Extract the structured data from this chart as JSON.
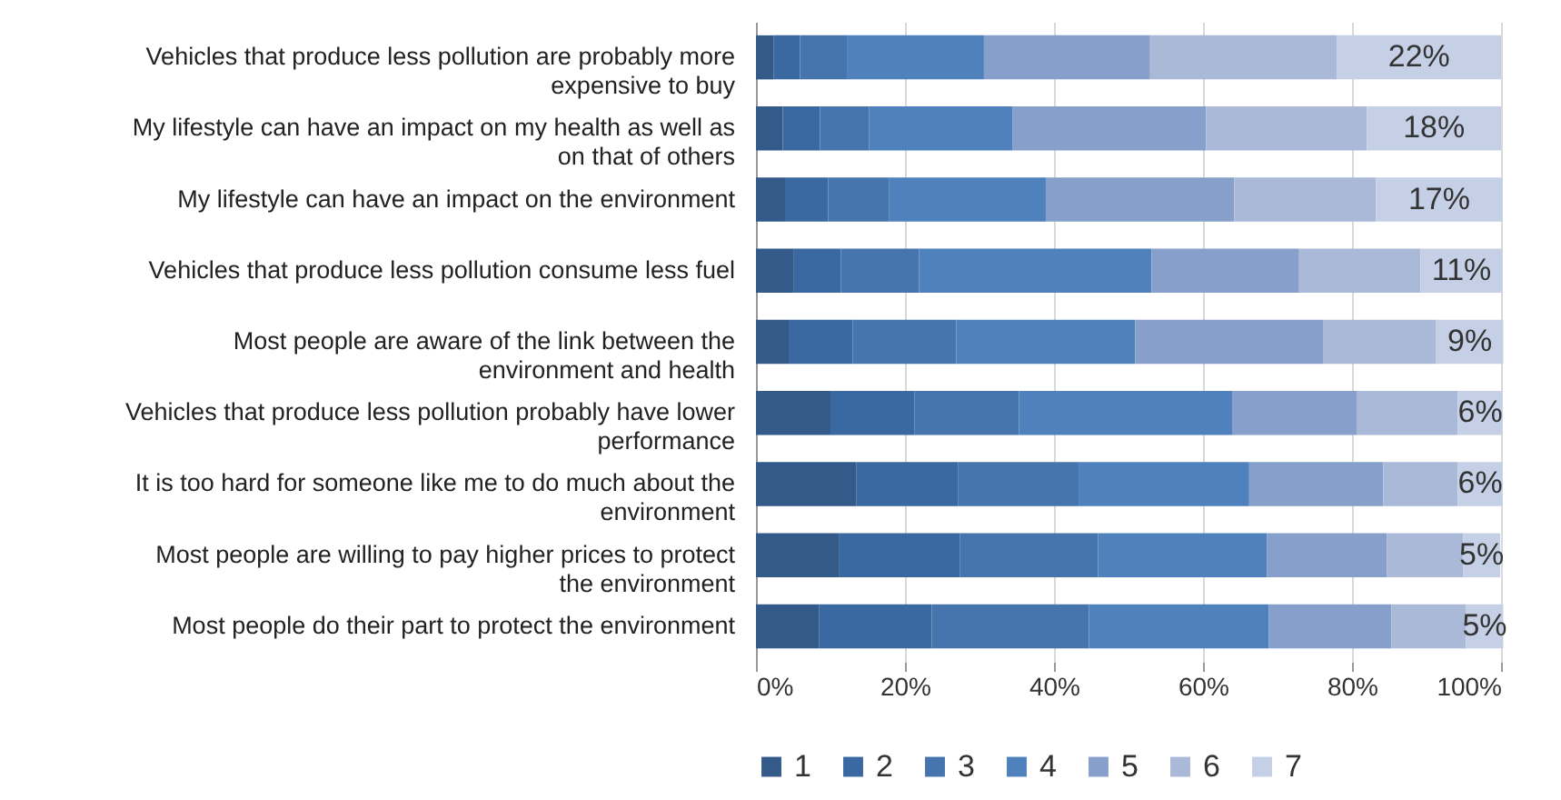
{
  "chart_data": {
    "type": "bar",
    "orientation": "horizontal",
    "stacked": true,
    "categories": [
      "Vehicles that produce less pollution are probably more expensive to buy",
      "My lifestyle can have an impact on my health as well as on that of others",
      "My lifestyle can have an impact on the environment",
      "Vehicles that produce less pollution consume less fuel",
      "Most people are aware of the link between the environment and health",
      "Vehicles that produce less pollution probably have lower performance",
      "It is too hard for someone like me to do much about the environment",
      "Most people are willing to pay higher prices to protect the environment",
      "Most people do their part to protect the environment"
    ],
    "series": [
      {
        "name": "1",
        "color": "#335a88",
        "values": [
          2.4,
          3.6,
          3.9,
          5.1,
          4.5,
          10,
          13.5,
          11.2,
          8.5
        ]
      },
      {
        "name": "2",
        "color": "#3a68a0",
        "values": [
          3.5,
          5,
          5.8,
          6.3,
          8.5,
          11.3,
          13.6,
          16.2,
          15.1
        ]
      },
      {
        "name": "3",
        "color": "#4674ad",
        "values": [
          6.3,
          6.6,
          8.2,
          10.5,
          13.9,
          14,
          16.2,
          18.5,
          21.1
        ]
      },
      {
        "name": "4",
        "color": "#4f81bd",
        "values": [
          18.4,
          19.2,
          21,
          31.2,
          24,
          28.6,
          22.9,
          22.7,
          24.1
        ]
      },
      {
        "name": "5",
        "color": "#86a0cb",
        "values": [
          22.3,
          26,
          25.3,
          19.8,
          25.2,
          16.8,
          18,
          16.1,
          16.5
        ]
      },
      {
        "name": "6",
        "color": "#aab9d8",
        "values": [
          25.1,
          21.6,
          19,
          16.3,
          15.2,
          13.5,
          10,
          10.2,
          10
        ]
      },
      {
        "name": "7",
        "color": "#c5d0e6",
        "values": [
          22,
          18,
          17,
          11,
          9,
          6,
          6,
          5,
          5
        ],
        "value_labels": [
          "22%",
          "18%",
          "17%",
          "11%",
          "9%",
          "6%",
          "6%",
          "5%",
          "5%"
        ]
      }
    ],
    "xlim": [
      0,
      100
    ],
    "xticks": [
      {
        "value": 0,
        "label": "0%"
      },
      {
        "value": 20,
        "label": "20%"
      },
      {
        "value": 40,
        "label": "40%"
      },
      {
        "value": 60,
        "label": "60%"
      },
      {
        "value": 80,
        "label": "80%"
      },
      {
        "value": 100,
        "label": "100%"
      }
    ],
    "grid": "x",
    "legend": "bottom"
  }
}
